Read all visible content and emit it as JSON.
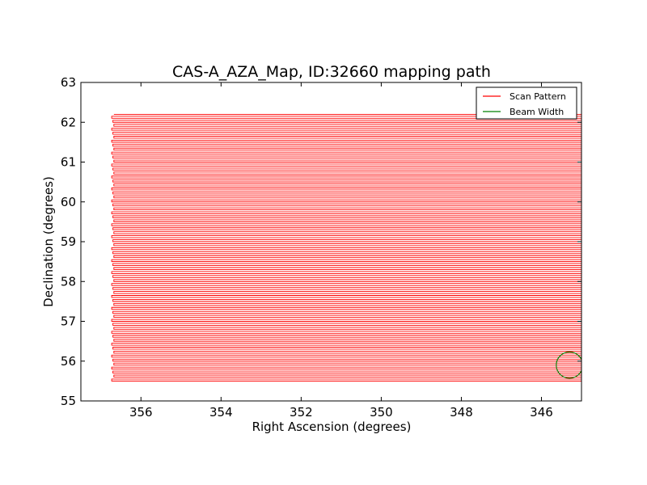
{
  "chart_data": {
    "type": "line",
    "title": "CAS-A_AZA_Map, ID:32660 mapping path",
    "xlabel": "Right Ascension (degrees)",
    "ylabel": "Declination (degrees)",
    "xlim": [
      357.5,
      345.0
    ],
    "ylim": [
      55,
      63
    ],
    "xticks": [
      356,
      354,
      352,
      350,
      348,
      346
    ],
    "xtick_labels": [
      "356",
      "354",
      "352",
      "350",
      "348",
      "346"
    ],
    "yticks": [
      55,
      56,
      57,
      58,
      59,
      60,
      61,
      62,
      63
    ],
    "ytick_labels": [
      "55",
      "56",
      "57",
      "58",
      "59",
      "60",
      "61",
      "62",
      "63"
    ],
    "grid": false,
    "legend_position": "top-right",
    "series": [
      {
        "name": "Scan Pattern",
        "color": "#ff0000",
        "pattern": "raster",
        "ra_min": 345.0,
        "ra_max": 356.7,
        "dec_start": 55.5,
        "dec_end": 62.2,
        "dec_step": 0.05
      },
      {
        "name": "Beam Width",
        "color": "#008000",
        "shape": "circle",
        "center": [
          345.3,
          55.9
        ],
        "radius_deg": 0.33
      }
    ]
  }
}
